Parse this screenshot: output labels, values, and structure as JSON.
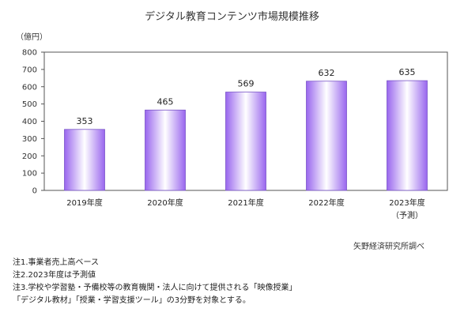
{
  "chart_data": {
    "type": "bar",
    "title": "デジタル教育コンテンツ市場規模推移",
    "unit": "（億円）",
    "categories": [
      "2019年度",
      "2020年度",
      "2021年度",
      "2022年度",
      "2023年度"
    ],
    "category_sublabels": [
      "",
      "",
      "",
      "",
      "（予測）"
    ],
    "values": [
      353,
      465,
      569,
      632,
      635
    ],
    "ylim": [
      0,
      800
    ],
    "yticks": [
      0,
      100,
      200,
      300,
      400,
      500,
      600,
      700,
      800
    ],
    "grid": false,
    "bar_color": "#9966ee",
    "bar_highlight": "#ffffff"
  },
  "source": "矢野経済研究所調べ",
  "notes": [
    "注1.事業者売上高ベース",
    "注2.2023年度は予測値",
    "注3.学校や学習塾・予備校等の教育機関・法人に向けて提供される「映像授業」",
    "「デジタル教材」「授業・学習支援ツール」の3分野を対象とする。"
  ]
}
